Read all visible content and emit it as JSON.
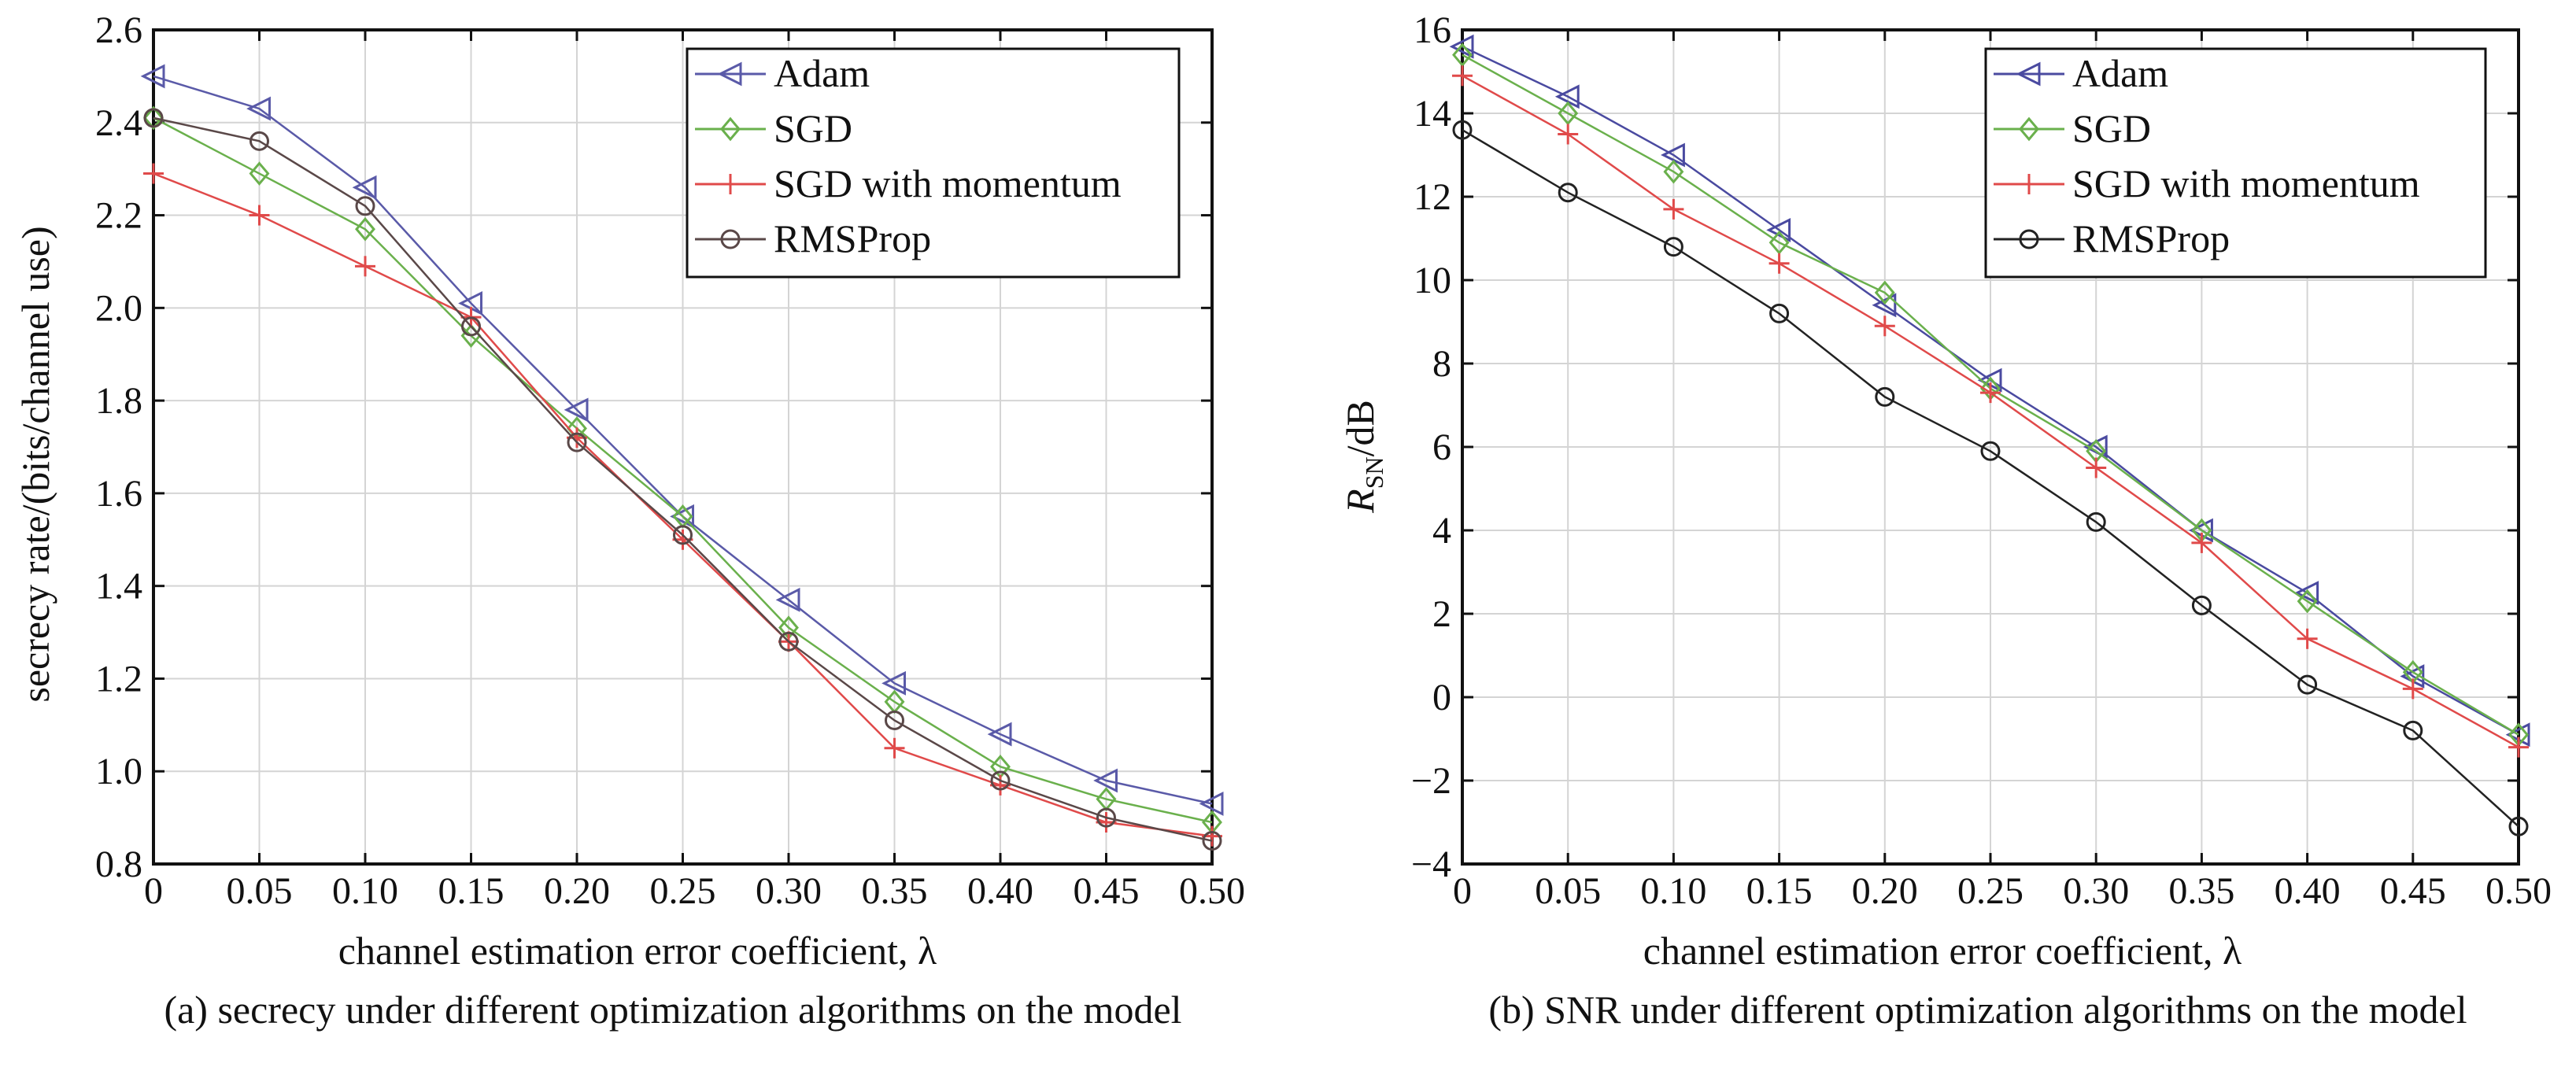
{
  "chart_data": [
    {
      "type": "line",
      "caption": "(a) secrecy under different optimization algorithms on the model",
      "xlabel": "channel estimation error coefficient, λ",
      "ylabel": "secrecy rate/(bits/channel use)",
      "xlim": [
        0,
        0.5
      ],
      "ylim": [
        0.8,
        2.6
      ],
      "x_ticks": [
        0,
        0.05,
        0.1,
        0.15,
        0.2,
        0.25,
        0.3,
        0.35,
        0.4,
        0.45,
        0.5
      ],
      "x_tick_labels": [
        "0",
        "0.05",
        "0.10",
        "0.15",
        "0.20",
        "0.25",
        "0.30",
        "0.35",
        "0.40",
        "0.45",
        "0.50"
      ],
      "y_ticks": [
        0.8,
        1.0,
        1.2,
        1.4,
        1.6,
        1.8,
        2.0,
        2.2,
        2.4,
        2.6
      ],
      "y_tick_labels": [
        "0.8",
        "1.0",
        "1.2",
        "1.4",
        "1.6",
        "1.8",
        "2.0",
        "2.2",
        "2.4",
        "2.6"
      ],
      "grid": true,
      "legend_position": "top-right",
      "x": [
        0,
        0.05,
        0.1,
        0.15,
        0.2,
        0.25,
        0.3,
        0.35,
        0.4,
        0.45,
        0.5
      ],
      "series": [
        {
          "name": "Adam",
          "color": "#5a5aa8",
          "marker": "triangle-left",
          "values": [
            2.5,
            2.43,
            2.26,
            2.01,
            1.78,
            1.55,
            1.37,
            1.19,
            1.08,
            0.98,
            0.93
          ]
        },
        {
          "name": "SGD",
          "color": "#6ab04c",
          "marker": "diamond",
          "values": [
            2.41,
            2.29,
            2.17,
            1.94,
            1.74,
            1.55,
            1.31,
            1.15,
            1.01,
            0.94,
            0.89
          ]
        },
        {
          "name": "SGD with momentum",
          "color": "#e04a4a",
          "marker": "plus",
          "values": [
            2.29,
            2.2,
            2.09,
            1.98,
            1.72,
            1.5,
            1.28,
            1.05,
            0.97,
            0.89,
            0.86
          ]
        },
        {
          "name": "RMSProp",
          "color": "#5a4848",
          "marker": "circle",
          "values": [
            2.41,
            2.36,
            2.22,
            1.96,
            1.71,
            1.51,
            1.28,
            1.11,
            0.98,
            0.9,
            0.85
          ]
        }
      ]
    },
    {
      "type": "line",
      "caption": "(b) SNR under different optimization algorithms on the model",
      "xlabel": "channel estimation error coefficient, λ",
      "ylabel_main": "R",
      "ylabel_sub": "SN",
      "ylabel_unit": "/dB",
      "xlim": [
        0,
        0.5
      ],
      "ylim": [
        -4,
        16
      ],
      "x_ticks": [
        0,
        0.05,
        0.1,
        0.15,
        0.2,
        0.25,
        0.3,
        0.35,
        0.4,
        0.45,
        0.5
      ],
      "x_tick_labels": [
        "0",
        "0.05",
        "0.10",
        "0.15",
        "0.20",
        "0.25",
        "0.30",
        "0.35",
        "0.40",
        "0.45",
        "0.50"
      ],
      "y_ticks": [
        -4,
        -2,
        0,
        2,
        4,
        6,
        8,
        10,
        12,
        14,
        16
      ],
      "y_tick_labels": [
        "−4",
        "−2",
        "0",
        "2",
        "4",
        "6",
        "8",
        "10",
        "12",
        "14",
        "16"
      ],
      "grid": true,
      "legend_position": "top-right",
      "x": [
        0,
        0.05,
        0.1,
        0.15,
        0.2,
        0.25,
        0.3,
        0.35,
        0.4,
        0.45,
        0.5
      ],
      "series": [
        {
          "name": "Adam",
          "color": "#4a4aa0",
          "marker": "triangle-left",
          "values": [
            15.6,
            14.4,
            13.0,
            11.2,
            9.4,
            7.6,
            6.0,
            4.0,
            2.5,
            0.5,
            -0.9
          ]
        },
        {
          "name": "SGD",
          "color": "#6ab04c",
          "marker": "diamond",
          "values": [
            15.4,
            14.0,
            12.6,
            10.9,
            9.7,
            7.4,
            5.9,
            4.0,
            2.3,
            0.6,
            -0.9
          ]
        },
        {
          "name": "SGD with momentum",
          "color": "#e04a4a",
          "marker": "plus",
          "values": [
            14.9,
            13.5,
            11.7,
            10.4,
            8.9,
            7.3,
            5.5,
            3.7,
            1.4,
            0.2,
            -1.2
          ]
        },
        {
          "name": "RMSProp",
          "color": "#222222",
          "marker": "circle",
          "values": [
            13.6,
            12.1,
            10.8,
            9.2,
            7.2,
            5.9,
            4.2,
            2.2,
            0.3,
            -0.8,
            -3.1
          ]
        }
      ]
    }
  ]
}
